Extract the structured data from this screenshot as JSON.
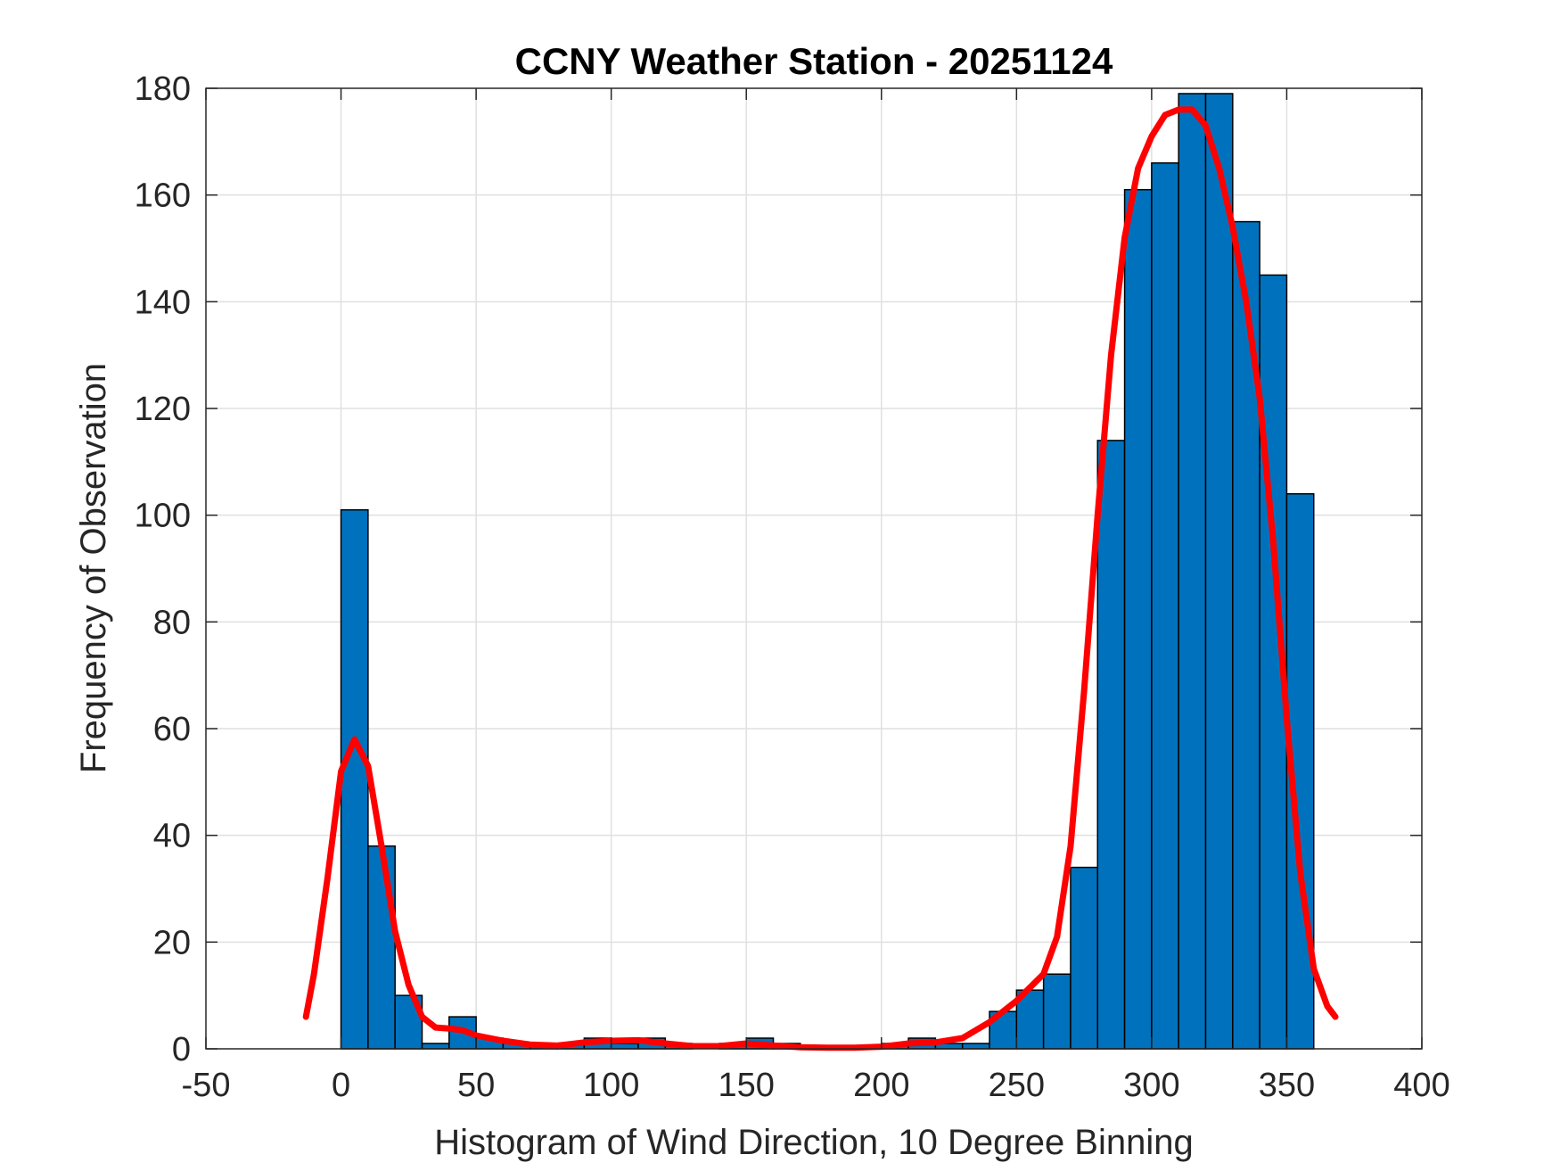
{
  "chart_data": {
    "type": "bar",
    "title": "CCNY Weather Station - 20251124",
    "xlabel": "Histogram of Wind Direction, 10 Degree Binning",
    "ylabel": "Frequency of Observation",
    "xlim": [
      -50,
      400
    ],
    "ylim": [
      0,
      180
    ],
    "xticks": [
      -50,
      0,
      50,
      100,
      150,
      200,
      250,
      300,
      350,
      400
    ],
    "yticks": [
      0,
      20,
      40,
      60,
      80,
      100,
      120,
      140,
      160,
      180
    ],
    "grid": true,
    "bin_width": 10,
    "bin_edges": [
      0,
      10,
      20,
      30,
      40,
      50,
      60,
      70,
      80,
      90,
      100,
      110,
      120,
      130,
      140,
      150,
      160,
      170,
      180,
      190,
      200,
      210,
      220,
      230,
      240,
      250,
      260,
      270,
      280,
      290,
      300,
      310,
      320,
      330,
      340,
      350,
      360
    ],
    "values": [
      101,
      38,
      10,
      1,
      6,
      2,
      1,
      1,
      1,
      2,
      1,
      2,
      1,
      0,
      1,
      2,
      1,
      0,
      0,
      0,
      1,
      2,
      1,
      1,
      7,
      11,
      14,
      34,
      114,
      161,
      166,
      179,
      179,
      155,
      145,
      104
    ],
    "bar_color": "#0072BD",
    "series": [
      {
        "type": "line",
        "color": "#FF0000",
        "x": [
          -13,
          -10,
          -5,
          0,
          5,
          10,
          15,
          20,
          25,
          30,
          35,
          40,
          45,
          50,
          60,
          70,
          80,
          90,
          100,
          110,
          120,
          130,
          140,
          150,
          160,
          170,
          180,
          190,
          200,
          210,
          220,
          230,
          240,
          250,
          260,
          265,
          270,
          275,
          280,
          285,
          290,
          295,
          300,
          305,
          310,
          315,
          320,
          325,
          330,
          335,
          340,
          345,
          350,
          355,
          360,
          365,
          368
        ],
        "y": [
          6,
          14,
          32,
          52,
          58,
          53,
          38,
          22,
          12,
          6,
          4,
          3.8,
          3.5,
          2.5,
          1.5,
          0.8,
          0.6,
          1.2,
          1.5,
          1.6,
          1.0,
          0.5,
          0.5,
          1.0,
          0.6,
          0.3,
          0.2,
          0.2,
          0.4,
          1.0,
          1.2,
          2,
          5,
          9,
          14,
          21,
          38,
          67,
          100,
          130,
          152,
          165,
          171,
          175,
          176,
          176,
          173,
          165,
          154,
          140,
          122,
          95,
          62,
          33,
          15,
          8,
          6
        ]
      }
    ]
  }
}
